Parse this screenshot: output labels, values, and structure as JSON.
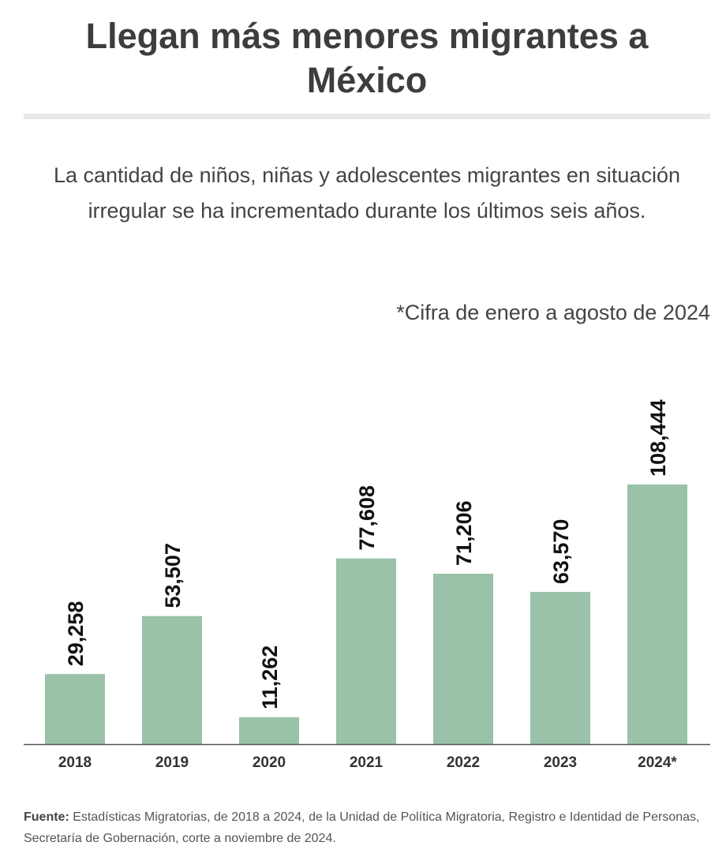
{
  "header": {
    "title": "Llegan más menores migrantes a México",
    "subtitle": "La cantidad de niños, niñas y adolescentes migrantes en situación irregular se ha incrementado durante los últimos seis años.",
    "note": "*Cifra de enero a agosto de 2024"
  },
  "chart_data": {
    "type": "bar",
    "categories": [
      "2018",
      "2019",
      "2020",
      "2021",
      "2022",
      "2023",
      "2024*"
    ],
    "values": [
      29258,
      53507,
      11262,
      77608,
      71206,
      63570,
      108444
    ],
    "value_labels": [
      "29,258",
      "53,507",
      "11,262",
      "77,608",
      "71,206",
      "63,570",
      "108,444"
    ],
    "title": "Llegan más menores migrantes a México",
    "xlabel": "",
    "ylabel": "",
    "ylim": [
      0,
      120000
    ],
    "grid": false,
    "bar_color": "#99c2a9"
  },
  "footer": {
    "source_label": "Fuente:",
    "source_text": " Estadísticas Migratorias, de 2018 a 2024, de la Unidad de Política Migratoria, Registro e Identidad de Personas, Secretaría de Gobernación, corte a noviembre de 2024."
  }
}
